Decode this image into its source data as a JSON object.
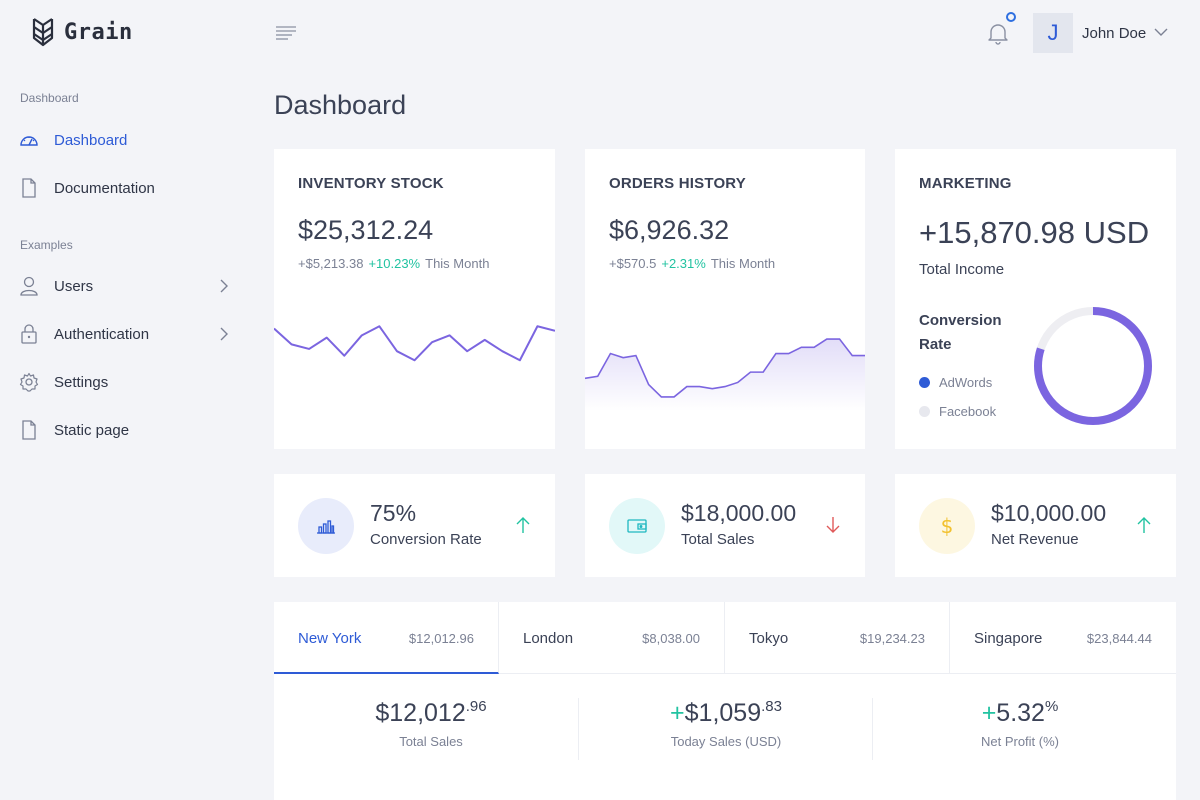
{
  "app": {
    "name": "Grain"
  },
  "sidebar": {
    "section1": "Dashboard",
    "section2": "Examples",
    "items": [
      {
        "label": "Dashboard",
        "icon": "gauge-icon"
      },
      {
        "label": "Documentation",
        "icon": "file-icon"
      },
      {
        "label": "Users",
        "icon": "user-icon"
      },
      {
        "label": "Authentication",
        "icon": "lock-icon"
      },
      {
        "label": "Settings",
        "icon": "gear-icon"
      },
      {
        "label": "Static page",
        "icon": "file-icon"
      }
    ]
  },
  "header": {
    "user_initial": "J",
    "user_name": "John Doe"
  },
  "page": {
    "title": "Dashboard"
  },
  "cards": {
    "inventory": {
      "title": "INVENTORY STOCK",
      "value": "$25,312.24",
      "delta": "+$5,213.38",
      "pct": "+10.23%",
      "period": "This Month",
      "series": [
        28,
        21,
        19,
        24,
        16,
        25,
        29,
        18,
        14,
        22,
        25,
        18,
        23,
        18,
        14,
        29,
        27
      ]
    },
    "orders": {
      "title": "ORDERS HISTORY",
      "value": "$6,926.32",
      "delta": "+$570.5",
      "pct": "+2.31%",
      "period": "This Month",
      "series": [
        10,
        11,
        22,
        20,
        21,
        7,
        1,
        1,
        6,
        6,
        5,
        6,
        8,
        13,
        13,
        22,
        22,
        25,
        25,
        29,
        29,
        21,
        21
      ]
    },
    "marketing": {
      "title": "MARKETING",
      "value": "+15,870.98 USD",
      "label": "Total Income",
      "conversion_label": "Conversion Rate",
      "legend": [
        {
          "name": "AdWords",
          "color": "#2e5bd6"
        },
        {
          "name": "Facebook",
          "color": "#e7e8ee"
        }
      ],
      "adwords_share": 0.8
    }
  },
  "stats": [
    {
      "value": "75%",
      "label": "Conversion Rate",
      "icon": "bar-chart-icon",
      "trend": "up"
    },
    {
      "value": "$18,000.00",
      "label": "Total Sales",
      "icon": "wallet-icon",
      "trend": "down"
    },
    {
      "value": "$10,000.00",
      "label": "Net Revenue",
      "icon": "dollar-icon",
      "trend": "up"
    }
  ],
  "cities": [
    {
      "name": "New York",
      "value": "$12,012.96"
    },
    {
      "name": "London",
      "value": "$8,038.00"
    },
    {
      "name": "Tokyo",
      "value": "$19,234.23"
    },
    {
      "name": "Singapore",
      "value": "$23,844.44"
    }
  ],
  "summary": [
    {
      "prefix": "",
      "main": "$12,012",
      "sup": ".96",
      "label": "Total Sales"
    },
    {
      "prefix": "+",
      "main": "$1,059",
      "sup": ".83",
      "label": "Today Sales (USD)"
    },
    {
      "prefix": "+",
      "main": "5.32",
      "sup": "%",
      "label": "Net Profit (%)"
    }
  ],
  "colors": {
    "accent": "#2e5bd6",
    "positive": "#22c3a1",
    "negative": "#e05a5a",
    "chart": "#7b65e0"
  }
}
